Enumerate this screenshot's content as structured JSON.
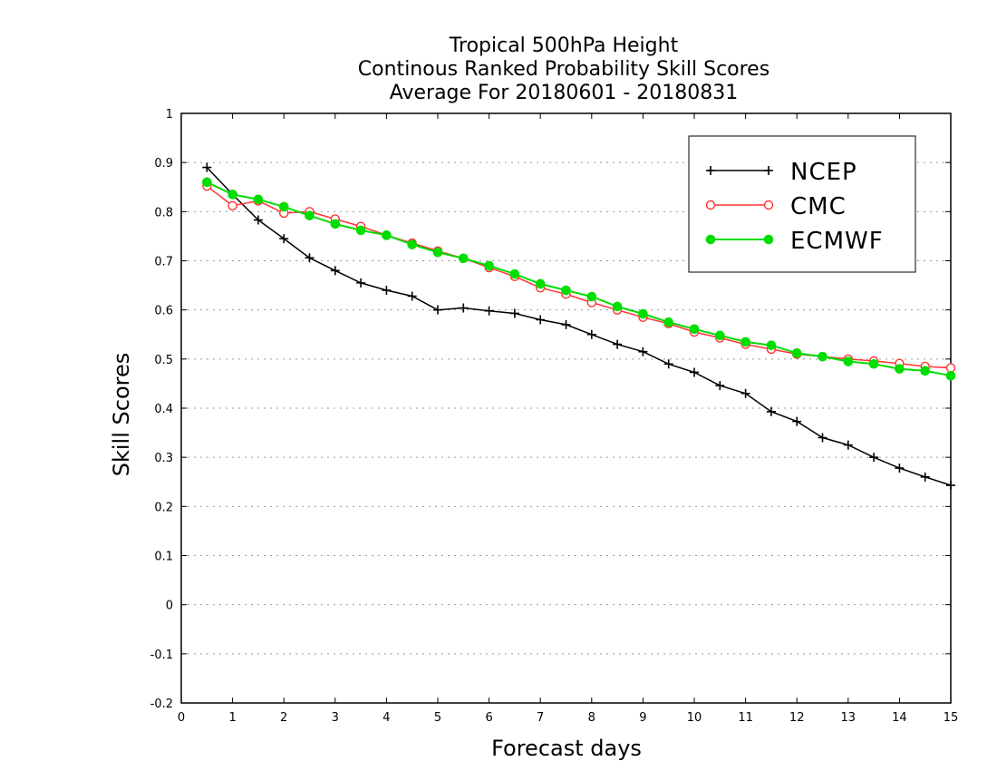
{
  "chart_data": {
    "type": "line",
    "title_lines": [
      "Tropical 500hPa Height",
      "Continous Ranked Probability Skill Scores",
      "Average For 20180601 - 20180831"
    ],
    "xlabel": "Forecast days",
    "ylabel": "Skill Scores",
    "xlim": [
      0,
      15
    ],
    "ylim": [
      -0.2,
      1
    ],
    "x_ticks": [
      "0",
      "1",
      "2",
      "3",
      "4",
      "5",
      "6",
      "7",
      "8",
      "9",
      "10",
      "11",
      "12",
      "13",
      "14",
      "15"
    ],
    "y_ticks": [
      "-0.2",
      "-0.1",
      "0",
      "0.1",
      "0.2",
      "0.3",
      "0.4",
      "0.5",
      "0.6",
      "0.7",
      "0.8",
      "0.9",
      "1"
    ],
    "grid": "horizontal dotted",
    "legend_position": "top-right",
    "x": [
      0.5,
      1,
      1.5,
      2,
      2.5,
      3,
      3.5,
      4,
      4.5,
      5,
      5.5,
      6,
      6.5,
      7,
      7.5,
      8,
      8.5,
      9,
      9.5,
      10,
      10.5,
      11,
      11.5,
      12,
      12.5,
      13,
      13.5,
      14,
      14.5,
      15
    ],
    "series": [
      {
        "name": "NCEP",
        "color": "#000000",
        "marker": "plus",
        "values": [
          0.89,
          0.835,
          0.783,
          0.745,
          0.706,
          0.68,
          0.655,
          0.64,
          0.628,
          0.6,
          0.604,
          0.598,
          0.593,
          0.58,
          0.57,
          0.55,
          0.53,
          0.515,
          0.49,
          0.473,
          0.446,
          0.43,
          0.393,
          0.373,
          0.34,
          0.325,
          0.3,
          0.278,
          0.26,
          0.243
        ]
      },
      {
        "name": "CMC",
        "color": "#ff3333",
        "marker": "open-circle",
        "values": [
          0.852,
          0.812,
          0.822,
          0.797,
          0.8,
          0.785,
          0.77,
          0.752,
          0.736,
          0.72,
          0.705,
          0.686,
          0.668,
          0.645,
          0.632,
          0.615,
          0.6,
          0.585,
          0.572,
          0.555,
          0.543,
          0.53,
          0.52,
          0.51,
          0.505,
          0.5,
          0.496,
          0.491,
          0.485,
          0.482
        ]
      },
      {
        "name": "ECMWF",
        "color": "#00dd00",
        "marker": "filled-circle",
        "values": [
          0.86,
          0.835,
          0.825,
          0.81,
          0.792,
          0.775,
          0.762,
          0.752,
          0.733,
          0.717,
          0.705,
          0.69,
          0.673,
          0.653,
          0.64,
          0.627,
          0.607,
          0.592,
          0.575,
          0.561,
          0.548,
          0.535,
          0.528,
          0.512,
          0.505,
          0.495,
          0.49,
          0.48,
          0.476,
          0.466
        ]
      }
    ]
  }
}
